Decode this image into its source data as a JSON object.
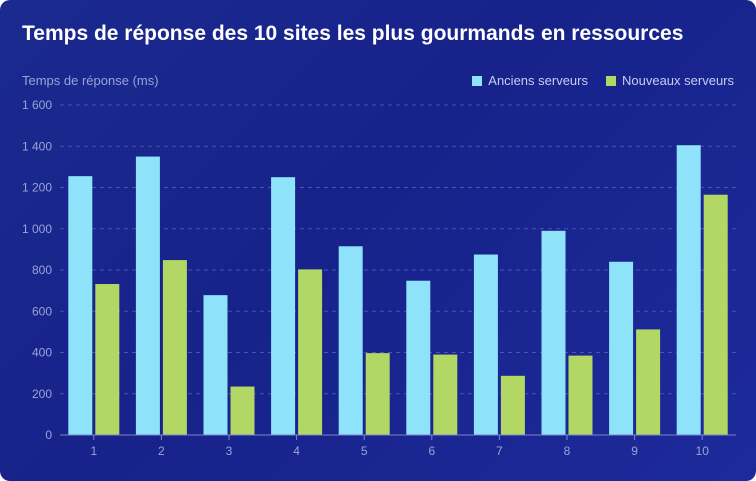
{
  "chart_data": {
    "type": "bar",
    "title": "Temps de réponse des 10 sites les plus gourmands en ressources",
    "ylabel": "Temps de réponse (ms)",
    "xlabel": "",
    "categories": [
      "1",
      "2",
      "3",
      "4",
      "5",
      "6",
      "7",
      "8",
      "9",
      "10"
    ],
    "series": [
      {
        "name": "Anciens serveurs",
        "color": "#8ee3fb",
        "values": [
          1255,
          1350,
          678,
          1250,
          915,
          748,
          875,
          990,
          840,
          1405
        ]
      },
      {
        "name": "Nouveaux serveurs",
        "color": "#b2d765",
        "values": [
          732,
          848,
          235,
          803,
          397,
          390,
          287,
          385,
          512,
          1165
        ]
      }
    ],
    "ylim": [
      0,
      1600
    ],
    "yticks": [
      "0",
      "200",
      "400",
      "600",
      "800",
      "1 000",
      "1 200",
      "1 400",
      "1 600"
    ],
    "ytick_values": [
      0,
      200,
      400,
      600,
      800,
      1000,
      1200,
      1400,
      1600
    ],
    "grid": true,
    "legend_position": "top-right"
  }
}
